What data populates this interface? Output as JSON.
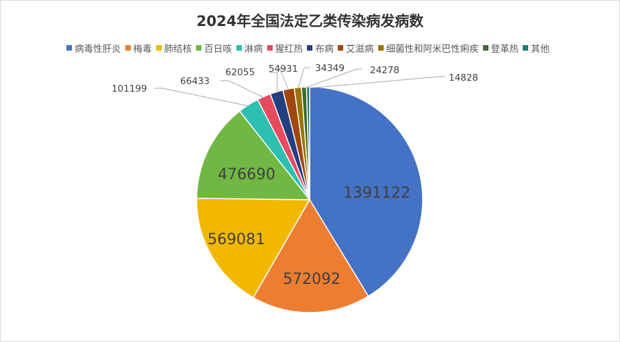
{
  "chart_data": {
    "type": "pie",
    "title": "2024年全国法定乙类传染病发病数",
    "legend_position": "top",
    "categories": [
      "病毒性肝炎",
      "梅毒",
      "肺结核",
      "百日咳",
      "淋病",
      "猩红热",
      "布病",
      "艾滋病",
      "细菌性和阿米巴性痢疾",
      "登革热",
      "其他"
    ],
    "values": [
      1391122,
      572092,
      569081,
      476690,
      101199,
      66433,
      62055,
      54931,
      34349,
      24278,
      14828
    ],
    "colors": [
      "#4472C4",
      "#ED7D31",
      "#F2B800",
      "#70B843",
      "#2DBFB0",
      "#E84A5F",
      "#243F7F",
      "#9E480E",
      "#997300",
      "#43682B",
      "#1F7A70"
    ],
    "data_labels": [
      "1391122",
      "572092",
      "569081",
      "476690",
      "101199",
      "66433",
      "62055",
      "54931",
      "34349",
      "24278",
      "14828"
    ]
  },
  "title": "2024年全国法定乙类传染病发病数",
  "legend": [
    {
      "label": "病毒性肝炎",
      "color": "#4472C4"
    },
    {
      "label": "梅毒",
      "color": "#ED7D31"
    },
    {
      "label": "肺结核",
      "color": "#F2B800"
    },
    {
      "label": "百日咳",
      "color": "#70B843"
    },
    {
      "label": "淋病",
      "color": "#2DBFB0"
    },
    {
      "label": "猩红热",
      "color": "#E84A5F"
    },
    {
      "label": "布病",
      "color": "#243F7F"
    },
    {
      "label": "艾滋病",
      "color": "#9E480E"
    },
    {
      "label": "细菌性和阿米巴性痢疾",
      "color": "#997300"
    },
    {
      "label": "登革热",
      "color": "#43682B"
    },
    {
      "label": "其他",
      "color": "#1F7A70"
    }
  ]
}
